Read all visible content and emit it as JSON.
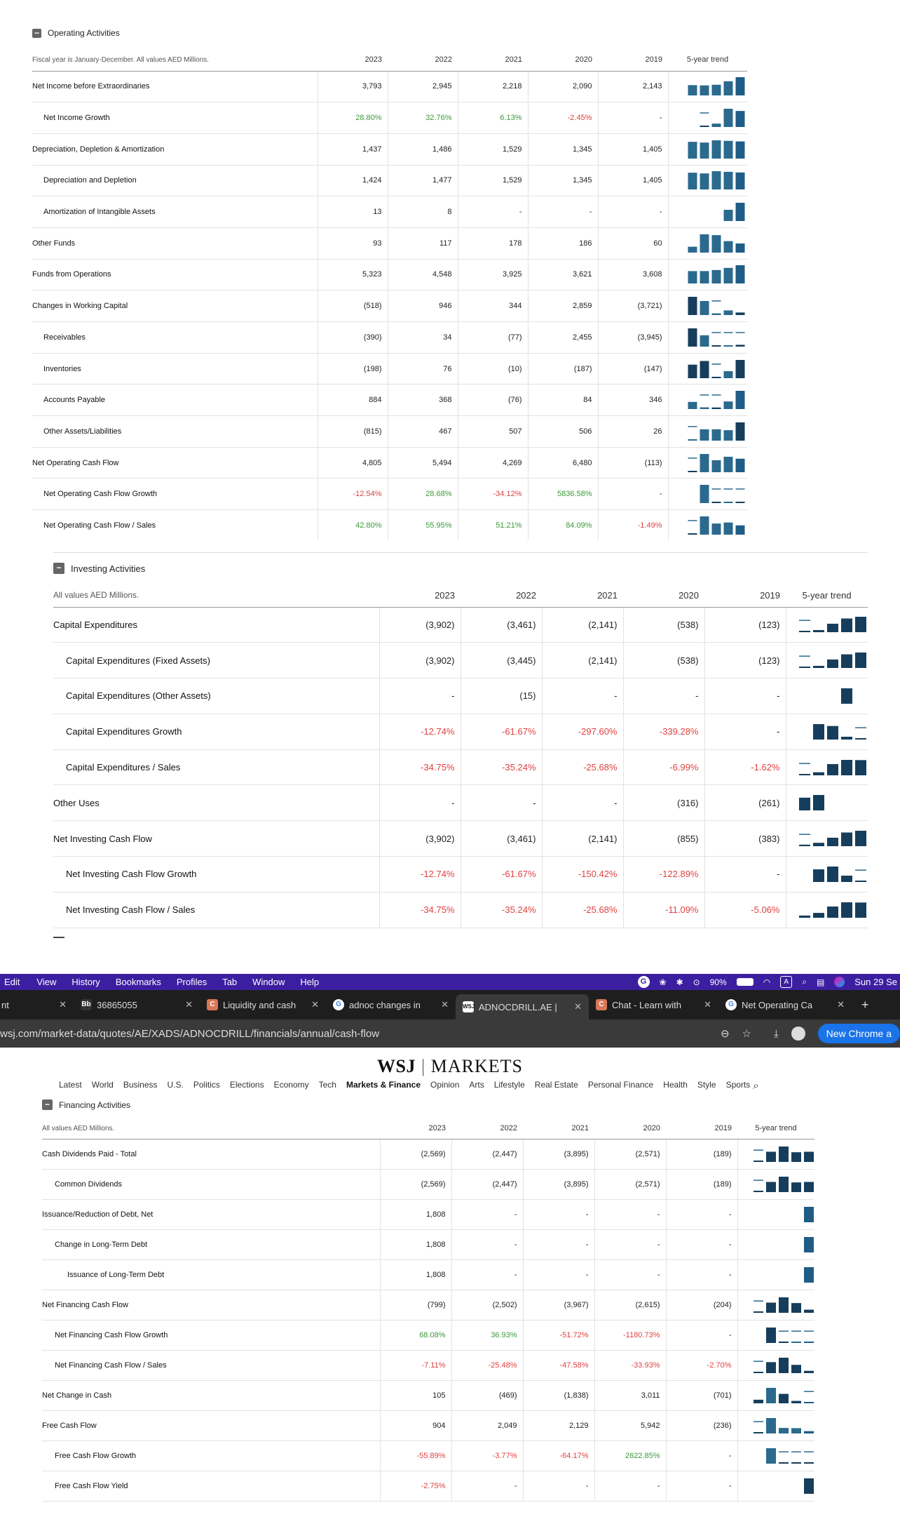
{
  "operating": {
    "title": "Operating Activities",
    "note": "Fiscal year is January-December. All values AED Millions.",
    "years": [
      "2023",
      "2022",
      "2021",
      "2020",
      "2019"
    ],
    "trend_header": "5-year trend",
    "rows": [
      {
        "label": "Net Income before Extraordinaries",
        "indent": 0,
        "values": [
          "3,793",
          "2,945",
          "2,218",
          "2,090",
          "2,143"
        ],
        "spark": [
          3793,
          2945,
          2218,
          2090,
          2143
        ]
      },
      {
        "label": "Net Income Growth",
        "indent": 1,
        "values": [
          "28.80%",
          "32.76%",
          "6.13%",
          "-2.45%",
          "-"
        ],
        "spark": [
          28.8,
          32.76,
          6.13,
          -2.45,
          0
        ]
      },
      {
        "label": "Depreciation, Depletion & Amortization",
        "indent": 0,
        "values": [
          "1,437",
          "1,486",
          "1,529",
          "1,345",
          "1,405"
        ],
        "spark": [
          1437,
          1486,
          1529,
          1345,
          1405
        ]
      },
      {
        "label": "Depreciation and Depletion",
        "indent": 1,
        "values": [
          "1,424",
          "1,477",
          "1,529",
          "1,345",
          "1,405"
        ],
        "spark": [
          1424,
          1477,
          1529,
          1345,
          1405
        ]
      },
      {
        "label": "Amortization of Intangible Assets",
        "indent": 1,
        "values": [
          "13",
          "8",
          "-",
          "-",
          "-"
        ],
        "spark": [
          13,
          8,
          0,
          0,
          0
        ]
      },
      {
        "label": "Other Funds",
        "indent": 0,
        "values": [
          "93",
          "117",
          "178",
          "186",
          "60"
        ],
        "spark": [
          93,
          117,
          178,
          186,
          60
        ]
      },
      {
        "label": "Funds from Operations",
        "indent": 0,
        "values": [
          "5,323",
          "4,548",
          "3,925",
          "3,621",
          "3,608"
        ],
        "spark": [
          5323,
          4548,
          3925,
          3621,
          3608
        ]
      },
      {
        "label": "Changes in Working Capital",
        "indent": 0,
        "values": [
          "(518)",
          "946",
          "344",
          "2,859",
          "(3,721)"
        ],
        "spark": [
          -518,
          946,
          344,
          2859,
          -3721
        ]
      },
      {
        "label": "Receivables",
        "indent": 1,
        "values": [
          "(390)",
          "34",
          "(77)",
          "2,455",
          "(3,945)"
        ],
        "spark": [
          -390,
          34,
          -77,
          2455,
          -3945
        ]
      },
      {
        "label": "Inventories",
        "indent": 1,
        "values": [
          "(198)",
          "76",
          "(10)",
          "(187)",
          "(147)"
        ],
        "spark": [
          -198,
          76,
          -10,
          -187,
          -147
        ]
      },
      {
        "label": "Accounts Payable",
        "indent": 1,
        "values": [
          "884",
          "368",
          "(76)",
          "84",
          "346"
        ],
        "spark": [
          884,
          368,
          -76,
          84,
          346
        ]
      },
      {
        "label": "Other Assets/Liabilities",
        "indent": 1,
        "values": [
          "(815)",
          "467",
          "507",
          "506",
          "26"
        ],
        "spark": [
          -815,
          467,
          507,
          506,
          26
        ]
      },
      {
        "label": "Net Operating Cash Flow",
        "indent": 0,
        "values": [
          "4,805",
          "5,494",
          "4,269",
          "6,480",
          "(113)"
        ],
        "spark": [
          4805,
          5494,
          4269,
          6480,
          -113
        ]
      },
      {
        "label": "Net Operating Cash Flow Growth",
        "indent": 1,
        "values": [
          "-12.54%",
          "28.68%",
          "-34.12%",
          "5836.58%",
          "-"
        ],
        "spark": [
          -12.54,
          28.68,
          -34.12,
          5836.58,
          0
        ]
      },
      {
        "label": "Net Operating Cash Flow / Sales",
        "indent": 1,
        "values": [
          "42.80%",
          "55.95%",
          "51.21%",
          "84.09%",
          "-1.49%"
        ],
        "spark": [
          42.8,
          55.95,
          51.21,
          84.09,
          -1.49
        ]
      }
    ]
  },
  "investing": {
    "title": "Investing Activities",
    "note": "All values AED Millions.",
    "years": [
      "2023",
      "2022",
      "2021",
      "2020",
      "2019"
    ],
    "trend_header": "5-year trend",
    "rows": [
      {
        "label": "Capital Expenditures",
        "indent": 0,
        "values": [
          "(3,902)",
          "(3,461)",
          "(2,141)",
          "(538)",
          "(123)"
        ],
        "spark": [
          -3902,
          -3461,
          -2141,
          -538,
          -123
        ]
      },
      {
        "label": "Capital Expenditures (Fixed Assets)",
        "indent": 1,
        "values": [
          "(3,902)",
          "(3,445)",
          "(2,141)",
          "(538)",
          "(123)"
        ],
        "spark": [
          -3902,
          -3445,
          -2141,
          -538,
          -123
        ]
      },
      {
        "label": "Capital Expenditures (Other Assets)",
        "indent": 1,
        "values": [
          "-",
          "(15)",
          "-",
          "-",
          "-"
        ],
        "spark": [
          0,
          -15,
          0,
          0,
          0
        ]
      },
      {
        "label": "Capital Expenditures Growth",
        "indent": 1,
        "values": [
          "-12.74%",
          "-61.67%",
          "-297.60%",
          "-339.28%",
          "-"
        ],
        "spark": [
          -12.74,
          -61.67,
          -297.6,
          -339.28,
          0
        ]
      },
      {
        "label": "Capital Expenditures / Sales",
        "indent": 1,
        "values": [
          "-34.75%",
          "-35.24%",
          "-25.68%",
          "-6.99%",
          "-1.62%"
        ],
        "spark": [
          -34.75,
          -35.24,
          -25.68,
          -6.99,
          -1.62
        ]
      },
      {
        "label": "Other Uses",
        "indent": 0,
        "values": [
          "-",
          "-",
          "-",
          "(316)",
          "(261)"
        ],
        "spark": [
          0,
          0,
          0,
          -316,
          -261
        ]
      },
      {
        "label": "Net Investing Cash Flow",
        "indent": 0,
        "values": [
          "(3,902)",
          "(3,461)",
          "(2,141)",
          "(855)",
          "(383)"
        ],
        "spark": [
          -3902,
          -3461,
          -2141,
          -855,
          -383
        ]
      },
      {
        "label": "Net Investing Cash Flow Growth",
        "indent": 1,
        "values": [
          "-12.74%",
          "-61.67%",
          "-150.42%",
          "-122.89%",
          "-"
        ],
        "spark": [
          -12.74,
          -61.67,
          -150.42,
          -122.89,
          0
        ]
      },
      {
        "label": "Net Investing Cash Flow / Sales",
        "indent": 1,
        "values": [
          "-34.75%",
          "-35.24%",
          "-25.68%",
          "-11.09%",
          "-5.06%"
        ],
        "spark": [
          -34.75,
          -35.24,
          -25.68,
          -11.09,
          -5.06
        ]
      }
    ]
  },
  "financing": {
    "title": "Financing Activities",
    "note": "All values AED Millions.",
    "years": [
      "2023",
      "2022",
      "2021",
      "2020",
      "2019"
    ],
    "trend_header": "5-year trend",
    "rows": [
      {
        "label": "Cash Dividends Paid - Total",
        "indent": 0,
        "values": [
          "(2,569)",
          "(2,447)",
          "(3,895)",
          "(2,571)",
          "(189)"
        ],
        "spark": [
          -2569,
          -2447,
          -3895,
          -2571,
          -189
        ]
      },
      {
        "label": "Common Dividends",
        "indent": 1,
        "values": [
          "(2,569)",
          "(2,447)",
          "(3,895)",
          "(2,571)",
          "(189)"
        ],
        "spark": [
          -2569,
          -2447,
          -3895,
          -2571,
          -189
        ]
      },
      {
        "label": "Issuance/Reduction of Debt, Net",
        "indent": 0,
        "values": [
          "1,808",
          "-",
          "-",
          "-",
          "-"
        ],
        "spark": [
          1808,
          0,
          0,
          0,
          0
        ]
      },
      {
        "label": "Change in Long-Term Debt",
        "indent": 1,
        "values": [
          "1,808",
          "-",
          "-",
          "-",
          "-"
        ],
        "spark": [
          1808,
          0,
          0,
          0,
          0
        ]
      },
      {
        "label": "Issuance of Long-Term Debt",
        "indent": 2,
        "values": [
          "1,808",
          "-",
          "-",
          "-",
          "-"
        ],
        "spark": [
          1808,
          0,
          0,
          0,
          0
        ]
      },
      {
        "label": "Net Financing Cash Flow",
        "indent": 0,
        "values": [
          "(799)",
          "(2,502)",
          "(3,967)",
          "(2,615)",
          "(204)"
        ],
        "spark": [
          -799,
          -2502,
          -3967,
          -2615,
          -204
        ]
      },
      {
        "label": "Net Financing Cash Flow Growth",
        "indent": 1,
        "values": [
          "68.08%",
          "36.93%",
          "-51.72%",
          "-1180.73%",
          "-"
        ],
        "spark": [
          68.08,
          36.93,
          -51.72,
          -1180.73,
          0
        ]
      },
      {
        "label": "Net Financing Cash Flow / Sales",
        "indent": 1,
        "values": [
          "-7.11%",
          "-25.48%",
          "-47.58%",
          "-33.93%",
          "-2.70%"
        ],
        "spark": [
          -7.11,
          -25.48,
          -47.58,
          -33.93,
          -2.7
        ]
      },
      {
        "label": "Net Change in Cash",
        "indent": 0,
        "values": [
          "105",
          "(469)",
          "(1,838)",
          "3,011",
          "(701)"
        ],
        "spark": [
          105,
          -469,
          -1838,
          3011,
          -701
        ]
      },
      {
        "label": "Free Cash Flow",
        "indent": 0,
        "values": [
          "904",
          "2,049",
          "2,129",
          "5,942",
          "(236)"
        ],
        "spark": [
          904,
          2049,
          2129,
          5942,
          -236
        ]
      },
      {
        "label": "Free Cash Flow Growth",
        "indent": 1,
        "values": [
          "-55.89%",
          "-3.77%",
          "-64.17%",
          "2622.85%",
          "-"
        ],
        "spark": [
          -55.89,
          -3.77,
          -64.17,
          2622.85,
          0
        ]
      },
      {
        "label": "Free Cash Flow Yield",
        "indent": 1,
        "values": [
          "-2.75%",
          "-",
          "-",
          "-",
          "-"
        ],
        "spark": [
          -2.75,
          0,
          0,
          0,
          0
        ]
      }
    ]
  },
  "menubar": {
    "items": [
      "Edit",
      "View",
      "History",
      "Bookmarks",
      "Profiles",
      "Tab",
      "Window",
      "Help"
    ],
    "battery": "90%",
    "clock": "Sun 29 Se"
  },
  "tabs": [
    {
      "label": "nt",
      "icon": "none"
    },
    {
      "label": "36865055",
      "icon": "Bb"
    },
    {
      "label": "Liquidity and cash",
      "icon": "C"
    },
    {
      "label": "adnoc changes in",
      "icon": "G"
    },
    {
      "label": "ADNOCDRILL.AE |",
      "icon": "WSJ"
    },
    {
      "label": "Chat - Learn with",
      "icon": "C"
    },
    {
      "label": "Net Operating Ca",
      "icon": "G"
    }
  ],
  "address": {
    "url": "wsj.com/market-data/quotes/AE/XADS/ADNOCDRILL/financials/annual/cash-flow",
    "button": "New Chrome a"
  },
  "wsj": {
    "logo_left": "WSJ",
    "logo_right": "MARKETS",
    "nav": [
      "Latest",
      "World",
      "Business",
      "U.S.",
      "Politics",
      "Elections",
      "Economy",
      "Tech",
      "Markets & Finance",
      "Opinion",
      "Arts",
      "Lifestyle",
      "Real Estate",
      "Personal Finance",
      "Health",
      "Style",
      "Sports"
    ]
  },
  "colors": {
    "bar": "#2b6a8e",
    "bar_latest": "#1f5c86",
    "bar_dark": "#163e5c",
    "menubar": "#3c1fa0",
    "positive": "#3a9a3a",
    "negative": "#e04040"
  }
}
